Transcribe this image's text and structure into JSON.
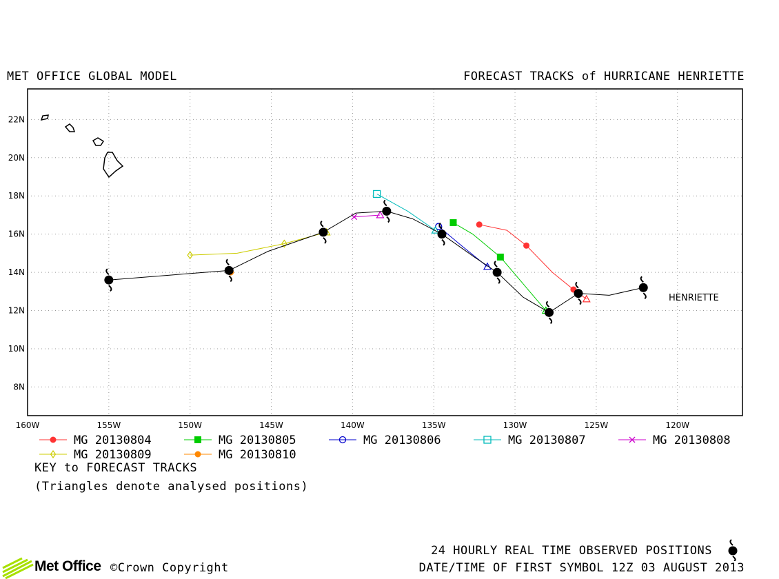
{
  "header": {
    "left_title": "MET OFFICE GLOBAL MODEL",
    "right_title": "FORECAST TRACKS of HURRICANE HENRIETTE"
  },
  "chart_data": {
    "type": "line",
    "x_axis": {
      "range": [
        -160,
        -116
      ],
      "ticks": [
        "160W",
        "155W",
        "150W",
        "145W",
        "140W",
        "135W",
        "130W",
        "125W",
        "120W"
      ],
      "tick_values": [
        -160,
        -155,
        -150,
        -145,
        -140,
        -135,
        -130,
        -125,
        -120
      ]
    },
    "y_axis": {
      "range": [
        6.5,
        23.6
      ],
      "ticks": [
        "8N",
        "10N",
        "12N",
        "14N",
        "16N",
        "18N",
        "20N",
        "22N"
      ],
      "tick_values": [
        8,
        10,
        12,
        14,
        16,
        18,
        20,
        22
      ]
    },
    "grid": "dotted",
    "storm_label": "HENRIETTE",
    "observed_track": {
      "points": [
        [
          -122.1,
          13.2
        ],
        [
          -124.2,
          12.8
        ],
        [
          -126.1,
          12.9
        ],
        [
          -127.9,
          11.9
        ],
        [
          -129.5,
          12.7
        ],
        [
          -131.1,
          14.0
        ],
        [
          -132.5,
          14.8
        ],
        [
          -134.5,
          16.0
        ],
        [
          -136.3,
          16.8
        ],
        [
          -137.9,
          17.2
        ],
        [
          -139.8,
          17.1
        ],
        [
          -141.8,
          16.1
        ],
        [
          -145.2,
          15.1
        ],
        [
          -147.6,
          14.1
        ],
        [
          -155.0,
          13.6
        ]
      ],
      "symbol_points": [
        [
          -122.1,
          13.2
        ],
        [
          -126.1,
          12.9
        ],
        [
          -127.9,
          11.9
        ],
        [
          -131.1,
          14.0
        ],
        [
          -134.5,
          16.0
        ],
        [
          -137.9,
          17.2
        ],
        [
          -141.8,
          16.1
        ],
        [
          -147.6,
          14.1
        ],
        [
          -155.0,
          13.6
        ]
      ]
    },
    "series": [
      {
        "name": "MG 20130804",
        "color": "#ff3333",
        "marker": "circle-filled",
        "points": [
          [
            -132.2,
            16.5
          ],
          [
            -130.5,
            16.2
          ],
          [
            -129.3,
            15.4
          ],
          [
            -127.7,
            14.0
          ],
          [
            -126.4,
            13.1
          ],
          [
            -125.6,
            12.6
          ]
        ]
      },
      {
        "name": "MG 20130805",
        "color": "#00cc00",
        "marker": "square-filled",
        "points": [
          [
            -133.8,
            16.6
          ],
          [
            -132.6,
            16.0
          ],
          [
            -130.9,
            14.8
          ],
          [
            -129.6,
            13.5
          ],
          [
            -128.1,
            12.0
          ]
        ]
      },
      {
        "name": "MG 20130806",
        "color": "#0000cc",
        "marker": "circle-open",
        "points": [
          [
            -134.7,
            16.4
          ],
          [
            -133.3,
            15.4
          ],
          [
            -131.7,
            14.3
          ]
        ]
      },
      {
        "name": "MG 20130807",
        "color": "#00bbbb",
        "marker": "square-open",
        "points": [
          [
            -138.5,
            18.1
          ],
          [
            -136.6,
            17.2
          ],
          [
            -134.9,
            16.2
          ]
        ]
      },
      {
        "name": "MG 20130808",
        "color": "#cc00cc",
        "marker": "cross",
        "points": [
          [
            -139.9,
            16.9
          ],
          [
            -138.3,
            17.0
          ]
        ]
      },
      {
        "name": "MG 20130809",
        "color": "#cccc00",
        "marker": "diamond-open",
        "points": [
          [
            -150.0,
            14.9
          ],
          [
            -147.1,
            15.0
          ],
          [
            -144.2,
            15.5
          ],
          [
            -141.6,
            16.1
          ]
        ]
      },
      {
        "name": "MG 20130810",
        "color": "#ff8800",
        "marker": "circle-filled",
        "points": [
          [
            -147.5,
            14.0
          ]
        ]
      }
    ],
    "analysed_positions_marker": "triangle"
  },
  "key": {
    "title": "KEY to FORECAST TRACKS",
    "note": "(Triangles denote analysed positions)"
  },
  "footer": {
    "observed": "24 HOURLY REAL TIME OBSERVED POSITIONS",
    "date": "DATE/TIME OF FIRST SYMBOL 12Z 03 AUGUST 2013",
    "logo": "Met Office",
    "copyright": "©Crown Copyright"
  }
}
